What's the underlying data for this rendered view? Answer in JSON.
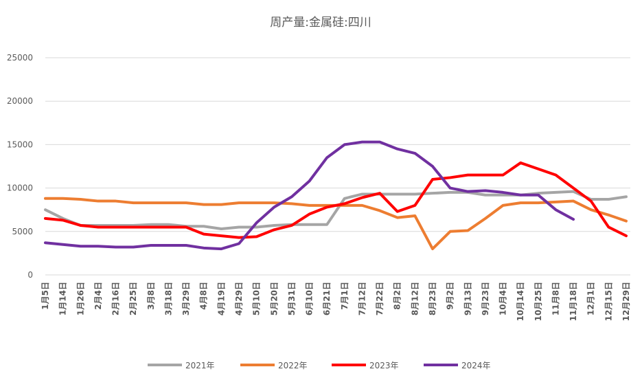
{
  "chart_data": {
    "type": "line",
    "title": "周产量:金属硅:四川",
    "categories": [
      "1月5日",
      "1月14日",
      "1月26日",
      "2月4日",
      "2月16日",
      "2月25日",
      "3月8日",
      "3月18日",
      "3月29日",
      "4月8日",
      "4月19日",
      "4月29日",
      "5月10日",
      "5月20日",
      "5月31日",
      "6月10日",
      "6月21日",
      "7月1日",
      "7月12日",
      "7月22日",
      "8月2日",
      "8月12日",
      "8月23日",
      "9月2日",
      "9月13日",
      "9月23日",
      "10月4日",
      "10月14日",
      "10月25日",
      "11月8日",
      "11月18日",
      "12月1日",
      "12月15日",
      "12月29日"
    ],
    "series": [
      {
        "name": "2021年",
        "color": "#a5a5a5",
        "values": [
          7500,
          6500,
          5700,
          5700,
          5700,
          5700,
          5800,
          5800,
          5600,
          5600,
          5300,
          5500,
          5500,
          5700,
          5800,
          5800,
          5800,
          8800,
          9300,
          9300,
          9300,
          9300,
          9400,
          9500,
          9500,
          9200,
          9200,
          9200,
          9400,
          9500,
          9600,
          8700,
          8700,
          9000
        ]
      },
      {
        "name": "2022年",
        "color": "#ed7d31",
        "values": [
          8800,
          8800,
          8700,
          8500,
          8500,
          8300,
          8300,
          8300,
          8300,
          8100,
          8100,
          8300,
          8300,
          8300,
          8200,
          8000,
          8000,
          8000,
          8000,
          7400,
          6600,
          6800,
          3000,
          5000,
          5100,
          6500,
          8000,
          8300,
          8300,
          8400,
          8500,
          7500,
          6900,
          6200
        ]
      },
      {
        "name": "2023年",
        "color": "#ff0000",
        "values": [
          6500,
          6300,
          5700,
          5500,
          5500,
          5500,
          5500,
          5500,
          5500,
          4700,
          4500,
          4300,
          4400,
          5200,
          5700,
          7000,
          7800,
          8200,
          8900,
          9400,
          7300,
          8000,
          11000,
          11200,
          11500,
          11500,
          11500,
          12900,
          12200,
          11500,
          10000,
          8500,
          5500,
          4500
        ]
      },
      {
        "name": "2024年",
        "color": "#7030a0",
        "values": [
          3700,
          3500,
          3300,
          3300,
          3200,
          3200,
          3400,
          3400,
          3400,
          3100,
          3000,
          3600,
          6000,
          7800,
          9000,
          10800,
          13500,
          15000,
          15300,
          15300,
          14500,
          14000,
          12500,
          10000,
          9600,
          9700,
          9500,
          9200,
          9200,
          7500,
          6400,
          null,
          null,
          null
        ]
      }
    ],
    "ylim": [
      0,
      25000
    ],
    "yticks": [
      0,
      5000,
      10000,
      15000,
      20000,
      25000
    ],
    "grid": true,
    "legend": "bottom"
  }
}
